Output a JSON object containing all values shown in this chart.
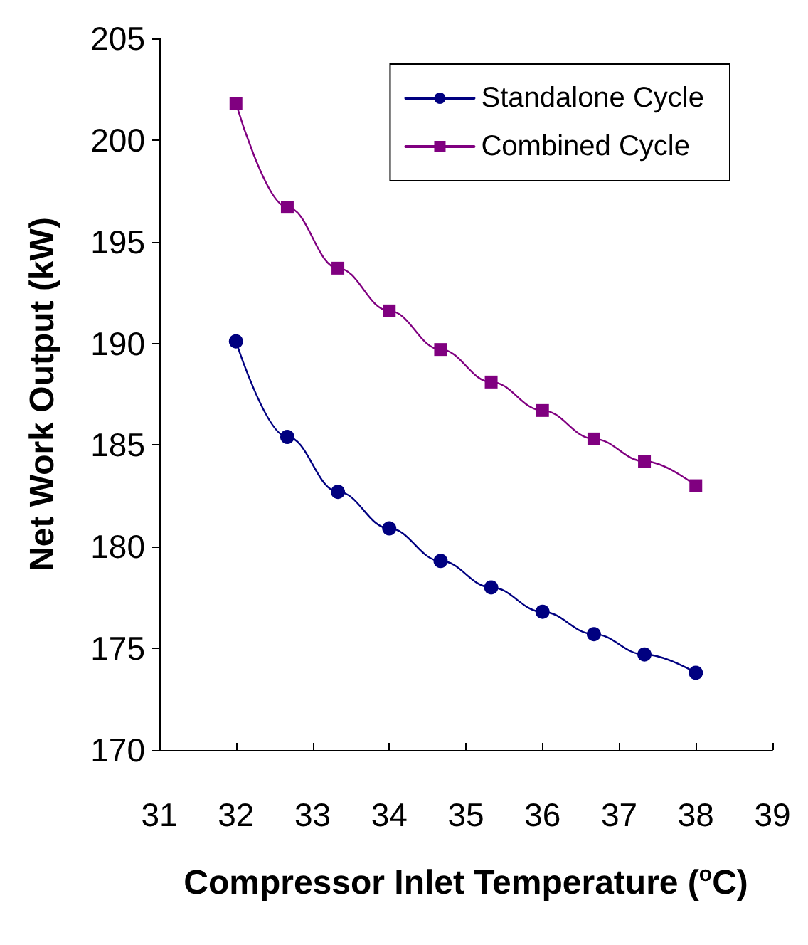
{
  "chart_data": {
    "type": "line",
    "xlabel": "Compressor Inlet Temperature ($^{o}$C)",
    "ylabel": "Net Work Output (kW)",
    "xlim": [
      31,
      39
    ],
    "xticks": [
      31,
      32,
      33,
      34,
      35,
      36,
      37,
      38,
      39
    ],
    "ylim": [
      170,
      205
    ],
    "yticks": [
      170,
      175,
      180,
      185,
      190,
      195,
      200,
      205
    ],
    "grid": false,
    "legend": "top right",
    "line_style": "solid",
    "series": [
      {
        "name": "Standalone Cycle",
        "color": "#000080",
        "marker": "circle",
        "x": [
          32,
          32.67,
          33.33,
          34,
          34.67,
          35.33,
          36,
          36.67,
          37.33,
          38
        ],
        "values": [
          190.1,
          185.4,
          182.7,
          180.9,
          179.3,
          178.0,
          176.8,
          175.7,
          174.7,
          173.8
        ]
      },
      {
        "name": "Combined Cycle",
        "color": "#800080",
        "marker": "square",
        "x": [
          32,
          32.67,
          33.33,
          34,
          34.67,
          35.33,
          36,
          36.67,
          37.33,
          38
        ],
        "values": [
          201.8,
          196.7,
          193.7,
          191.6,
          189.7,
          188.1,
          186.7,
          185.3,
          184.2,
          183.0
        ]
      }
    ]
  }
}
